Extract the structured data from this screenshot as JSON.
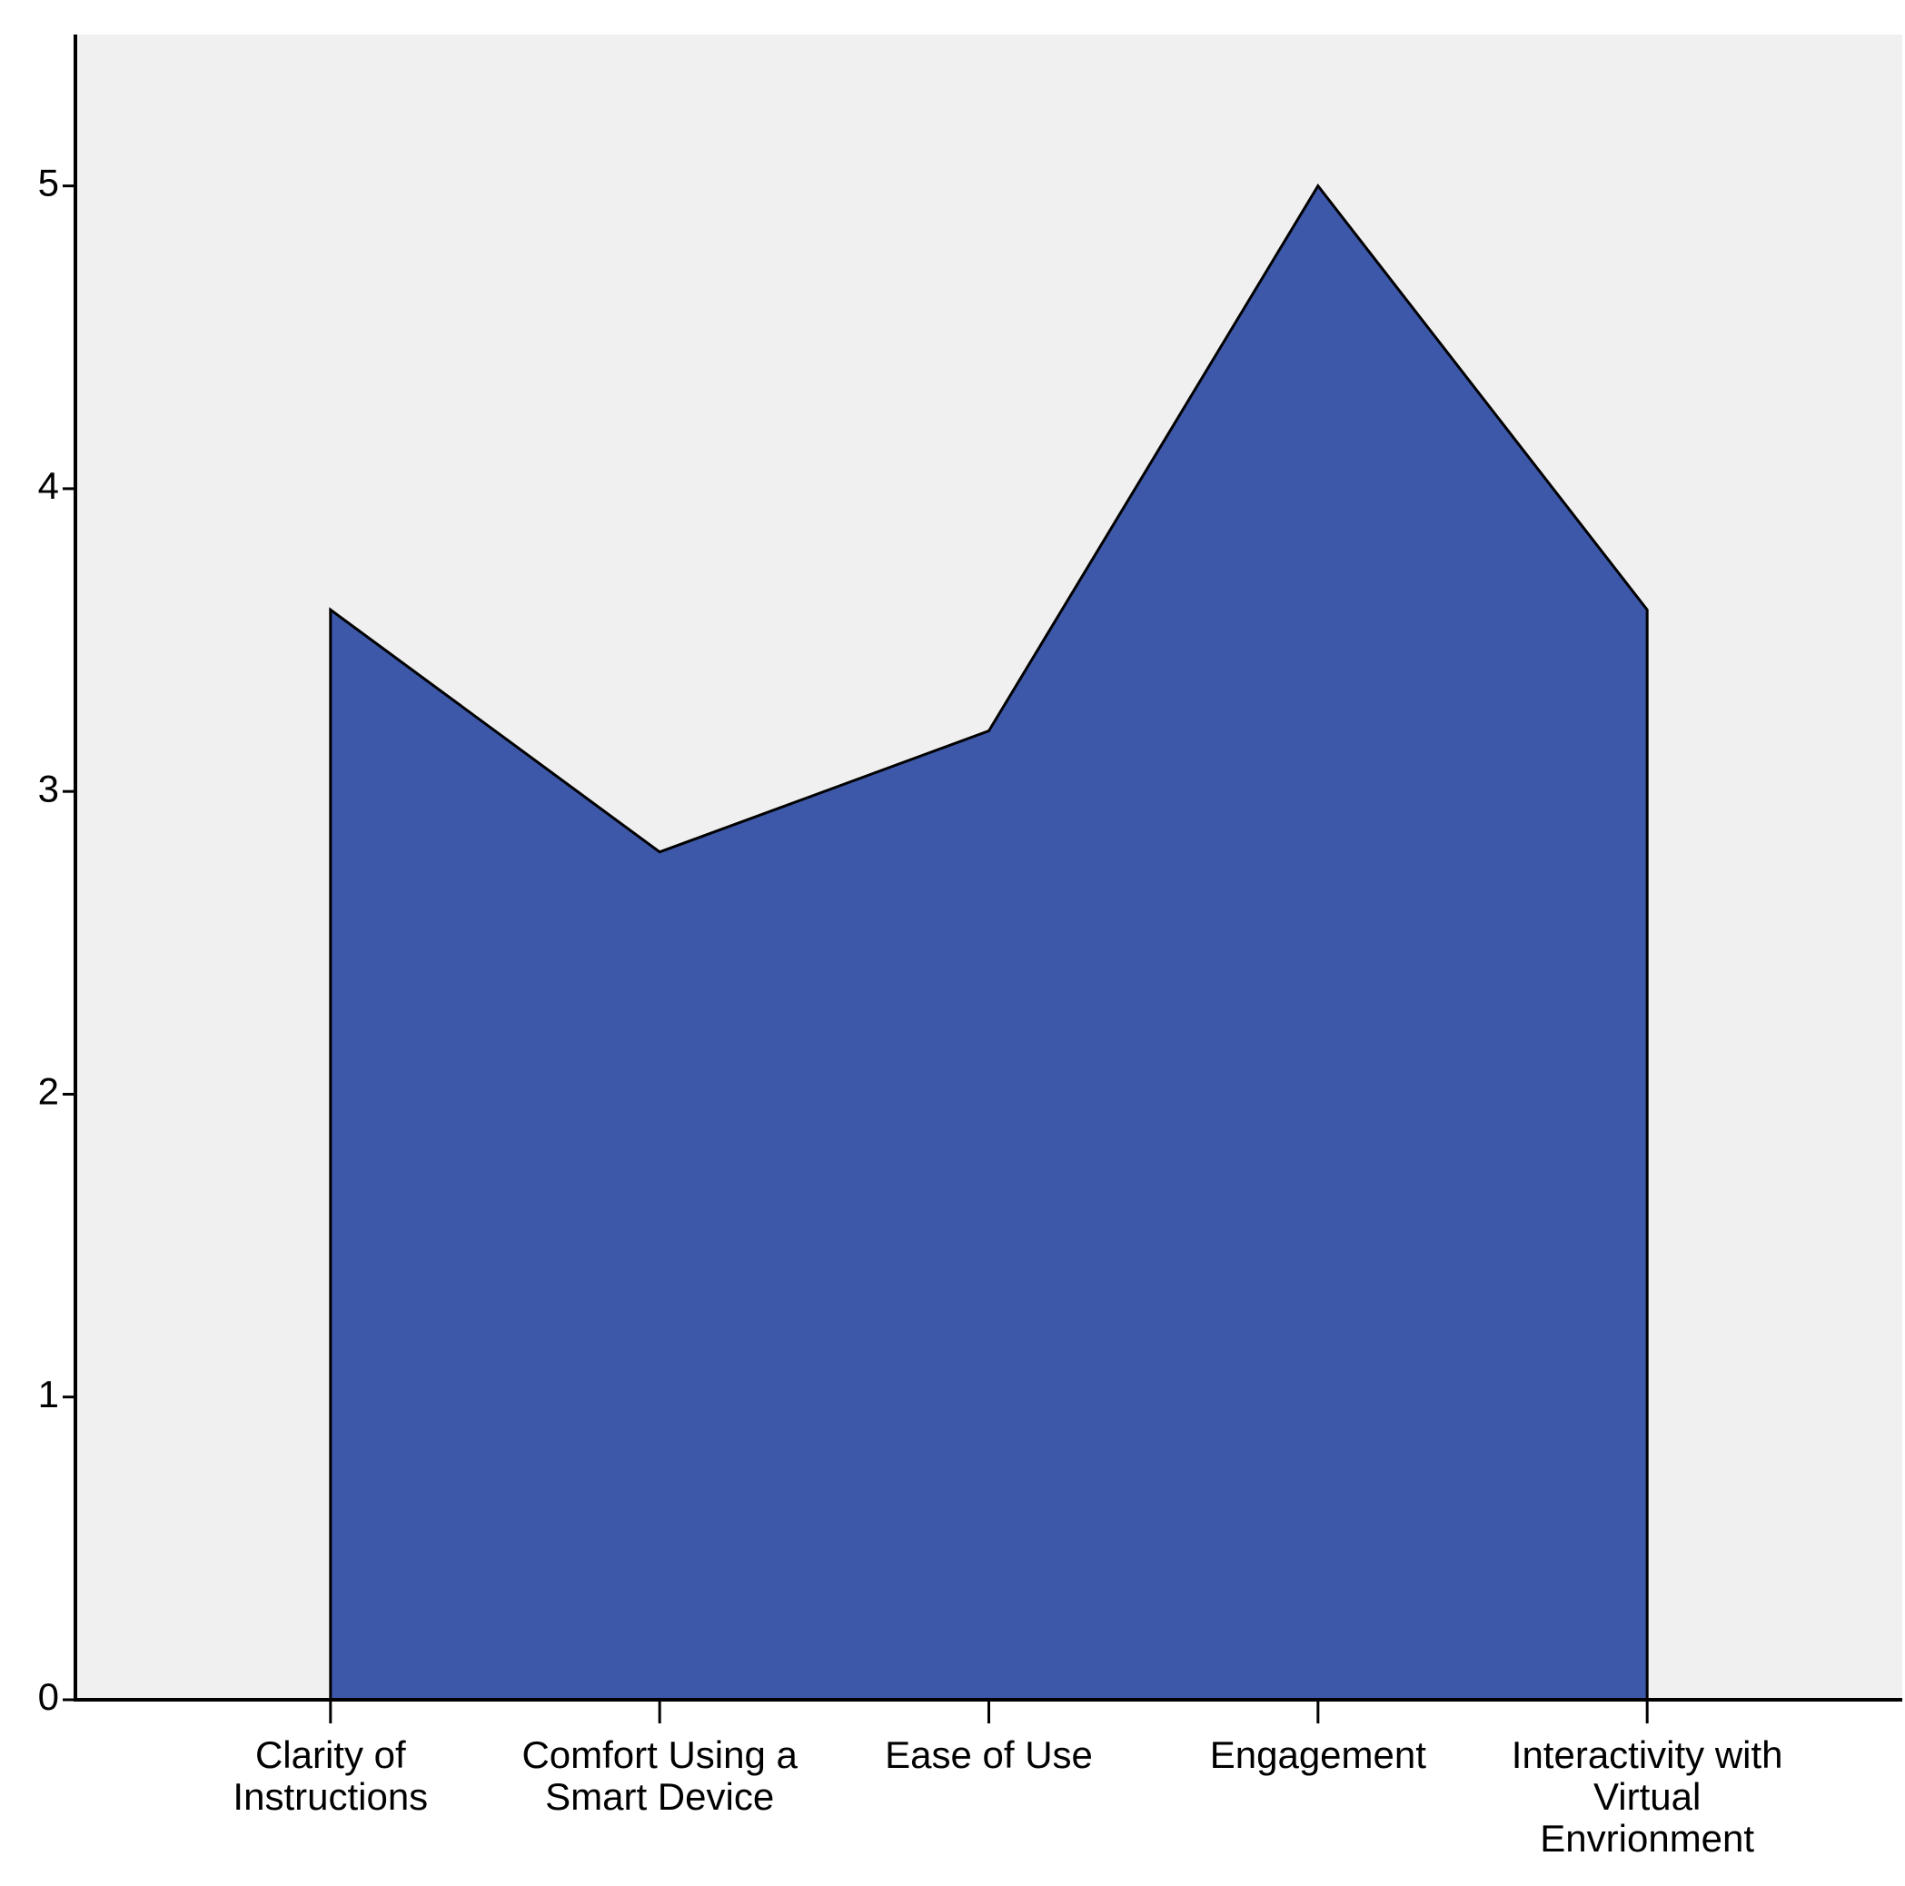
{
  "chart_data": {
    "type": "area",
    "categories": [
      "Clarity of Instructions",
      "Comfort Using a Smart Device",
      "Ease of Use",
      "Engagement",
      "Interactivity with Virtual Envrionment"
    ],
    "values": [
      3.6,
      2.8,
      3.2,
      5.0,
      3.6
    ],
    "color": "#3d58a9",
    "ylim": [
      0,
      5.5
    ],
    "yticks": [
      0,
      1,
      2,
      3,
      4,
      5
    ],
    "grid": false
  }
}
